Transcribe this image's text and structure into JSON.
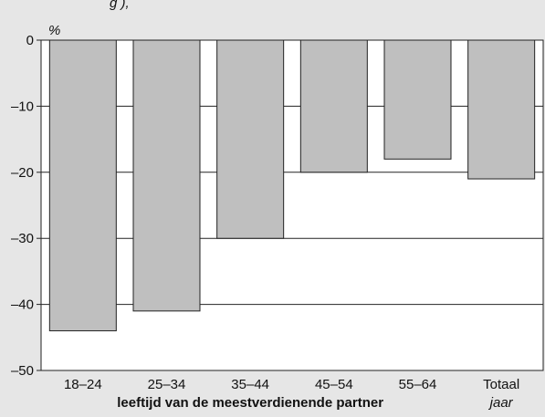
{
  "header_fragment": "g                                             ),",
  "chart_data": {
    "type": "bar",
    "categories": [
      "18–24",
      "25–34",
      "35–44",
      "45–54",
      "55–64",
      "Totaal"
    ],
    "values": [
      -44,
      -41,
      -30,
      -20,
      -18,
      -21
    ],
    "title": "",
    "xlabel": "leeftijd van de meestverdienende partner",
    "xlabel_sub": "jaar",
    "ylabel": "%",
    "ylim": [
      -50,
      0
    ],
    "yticks": [
      0,
      -10,
      -20,
      -30,
      -40,
      -50
    ],
    "ytick_labels": [
      "0",
      "–10",
      "–20",
      "–30",
      "–40",
      "–50"
    ],
    "grid": true,
    "legend": "none"
  },
  "colors": {
    "bar_fill": "#bfbfbf",
    "bar_stroke": "#222222",
    "plot_bg": "#ffffff",
    "page_bg": "#e6e6e6",
    "grid": "#222222"
  }
}
